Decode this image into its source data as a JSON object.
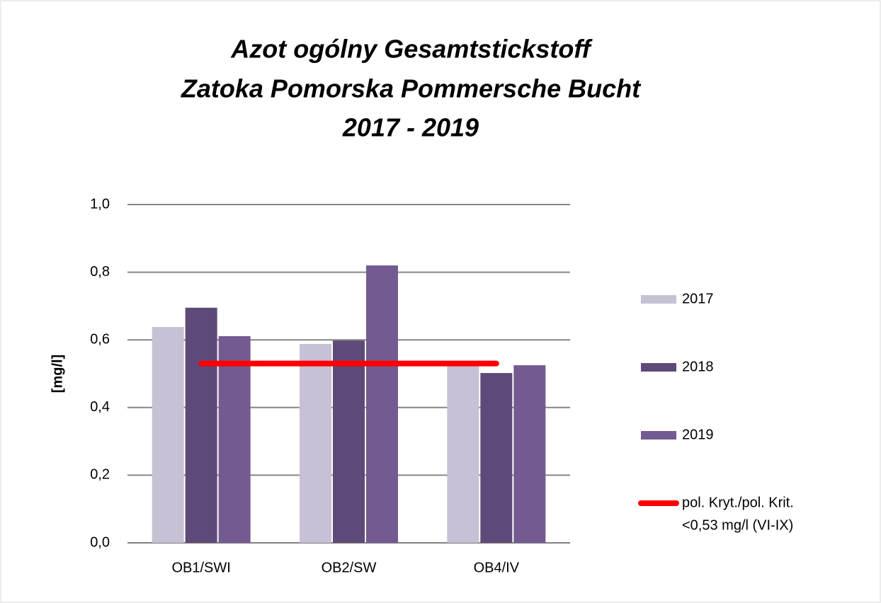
{
  "chart_data": {
    "type": "bar",
    "title": [
      "Azot ogólny  Gesamtstickstoff",
      "Zatoka Pomorska  Pommersche Bucht",
      "2017 - 2019"
    ],
    "y_label": "[mg/l]",
    "categories": [
      "OB1/SWI",
      "OB2/SW",
      "OB4/IV"
    ],
    "series": [
      {
        "name": "2017",
        "color": "#c8c0d4",
        "values": [
          0.638,
          0.588,
          0.53
        ]
      },
      {
        "name": "2018",
        "color": "#5e4a78",
        "values": [
          0.695,
          0.598,
          0.502
        ]
      },
      {
        "name": "2019",
        "color": "#735b91",
        "values": [
          0.611,
          0.82,
          0.525
        ]
      }
    ],
    "threshold": {
      "name": [
        "pol. Kryt./pol. Krit.",
        "<0,53 mg/l (VI-IX)"
      ],
      "value": 0.53,
      "color": "#ff0000"
    },
    "ylim": [
      0,
      1
    ],
    "yticks": [
      {
        "value": 0,
        "label": "0,0"
      },
      {
        "value": 0.2,
        "label": "0,2"
      },
      {
        "value": 0.4,
        "label": "0,4"
      },
      {
        "value": 0.6,
        "label": "0,6"
      },
      {
        "value": 0.8,
        "label": "0,8"
      },
      {
        "value": 1,
        "label": "1,0"
      }
    ],
    "grid": true,
    "legend": "right"
  }
}
